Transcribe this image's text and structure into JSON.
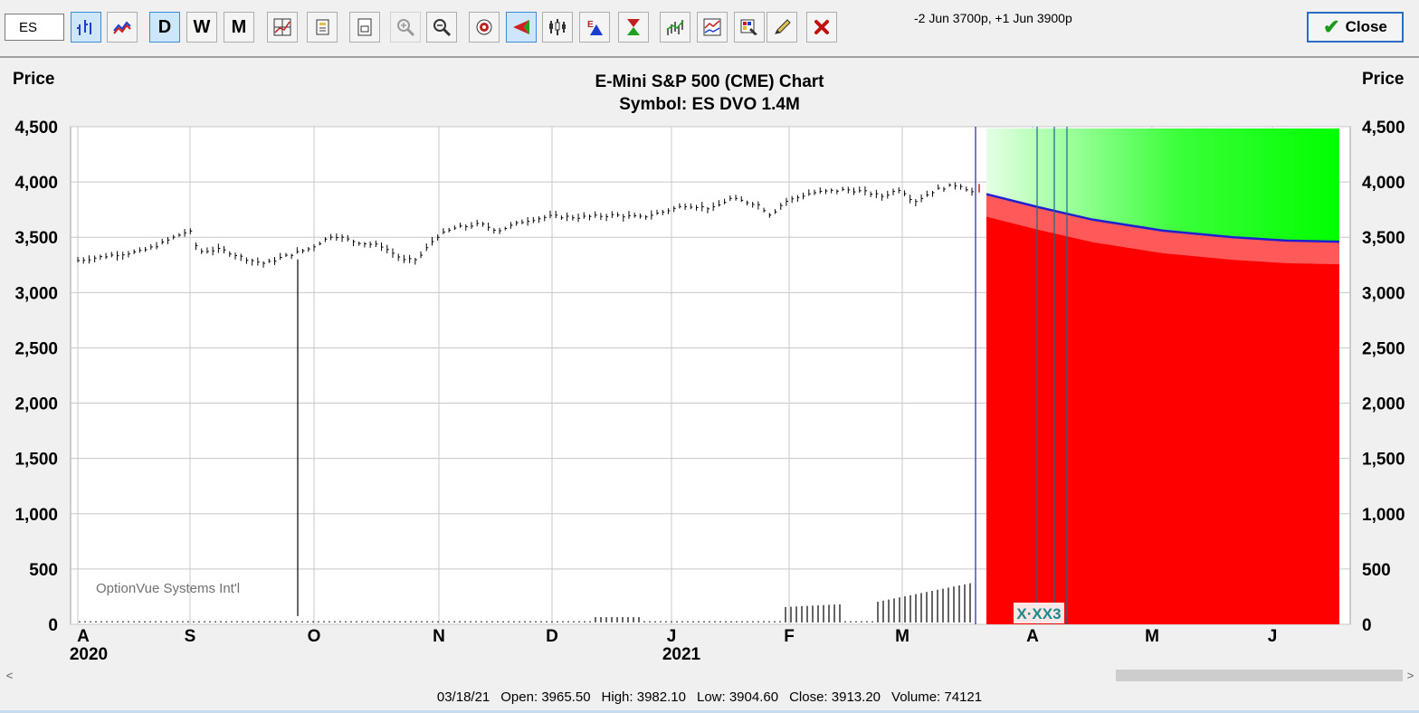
{
  "toolbar": {
    "symbol_value": "ES",
    "buttons": {
      "daily": "D",
      "weekly": "W",
      "monthly": "M"
    },
    "option_positions": "-2 Jun 3700p, +1 Jun 3900p",
    "close_label": "Close"
  },
  "chart": {
    "title": "E-Mini S&P 500 (CME) Chart",
    "subtitle": "Symbol: ES  DVO 1.4M",
    "left_axis_label": "Price",
    "right_axis_label": "Price",
    "watermark": "OptionVue Systems Int'l",
    "date_marker": "X·XX3"
  },
  "chart_data": {
    "type": "ohlc",
    "ylim": [
      0,
      4500
    ],
    "y_ticks": [
      "4,500",
      "4,000",
      "3,500",
      "3,000",
      "2,500",
      "2,000",
      "1,500",
      "1,000",
      "500",
      "0"
    ],
    "x_ticks": [
      "A",
      "S",
      "O",
      "N",
      "D",
      "J",
      "F",
      "M",
      "A",
      "M",
      "J"
    ],
    "year_labels": [
      "2020",
      "2021"
    ],
    "price_path": [
      [
        0.0,
        3290
      ],
      [
        0.04,
        3340
      ],
      [
        0.07,
        3370
      ],
      [
        0.09,
        3430
      ],
      [
        0.11,
        3510
      ],
      [
        0.125,
        3560
      ],
      [
        0.135,
        3370
      ],
      [
        0.16,
        3390
      ],
      [
        0.19,
        3300
      ],
      [
        0.21,
        3260
      ],
      [
        0.225,
        3310
      ],
      [
        0.26,
        3400
      ],
      [
        0.285,
        3520
      ],
      [
        0.31,
        3460
      ],
      [
        0.34,
        3420
      ],
      [
        0.365,
        3290
      ],
      [
        0.38,
        3300
      ],
      [
        0.4,
        3500
      ],
      [
        0.42,
        3580
      ],
      [
        0.45,
        3620
      ],
      [
        0.47,
        3560
      ],
      [
        0.5,
        3650
      ],
      [
        0.53,
        3690
      ],
      [
        0.56,
        3680
      ],
      [
        0.6,
        3700
      ],
      [
        0.63,
        3680
      ],
      [
        0.65,
        3720
      ],
      [
        0.68,
        3790
      ],
      [
        0.71,
        3760
      ],
      [
        0.73,
        3850
      ],
      [
        0.76,
        3800
      ],
      [
        0.775,
        3700
      ],
      [
        0.79,
        3820
      ],
      [
        0.82,
        3900
      ],
      [
        0.845,
        3920
      ],
      [
        0.86,
        3930
      ],
      [
        0.88,
        3910
      ],
      [
        0.9,
        3870
      ],
      [
        0.92,
        3940
      ],
      [
        0.935,
        3820
      ],
      [
        0.96,
        3930
      ],
      [
        0.985,
        3980
      ],
      [
        1.0,
        3910
      ]
    ],
    "spike_low": 75,
    "forecast_line": [
      [
        0.0,
        3890
      ],
      [
        0.15,
        3770
      ],
      [
        0.3,
        3660
      ],
      [
        0.5,
        3560
      ],
      [
        0.7,
        3500
      ],
      [
        0.85,
        3470
      ],
      [
        1.0,
        3460
      ]
    ],
    "last_bar": {
      "date": "03/18/21",
      "open": "3965.50",
      "high": "3982.10",
      "low": "3904.60",
      "close": "3913.20",
      "volume": "74121"
    },
    "colors": {
      "profit": "#00ff00",
      "loss": "#ff0000",
      "forecast": "#2020d0",
      "grid": "#c8c8c8"
    }
  },
  "status": {
    "date": "03/18/21",
    "open_label": "Open:",
    "open": "3965.50",
    "high_label": "High:",
    "high": "3982.10",
    "low_label": "Low:",
    "low": "3904.60",
    "close_label": "Close:",
    "close": "3913.20",
    "volume_label": "Volume:",
    "volume": "74121"
  },
  "scroll": {
    "left_arrow": "<",
    "right_arrow": ">"
  }
}
